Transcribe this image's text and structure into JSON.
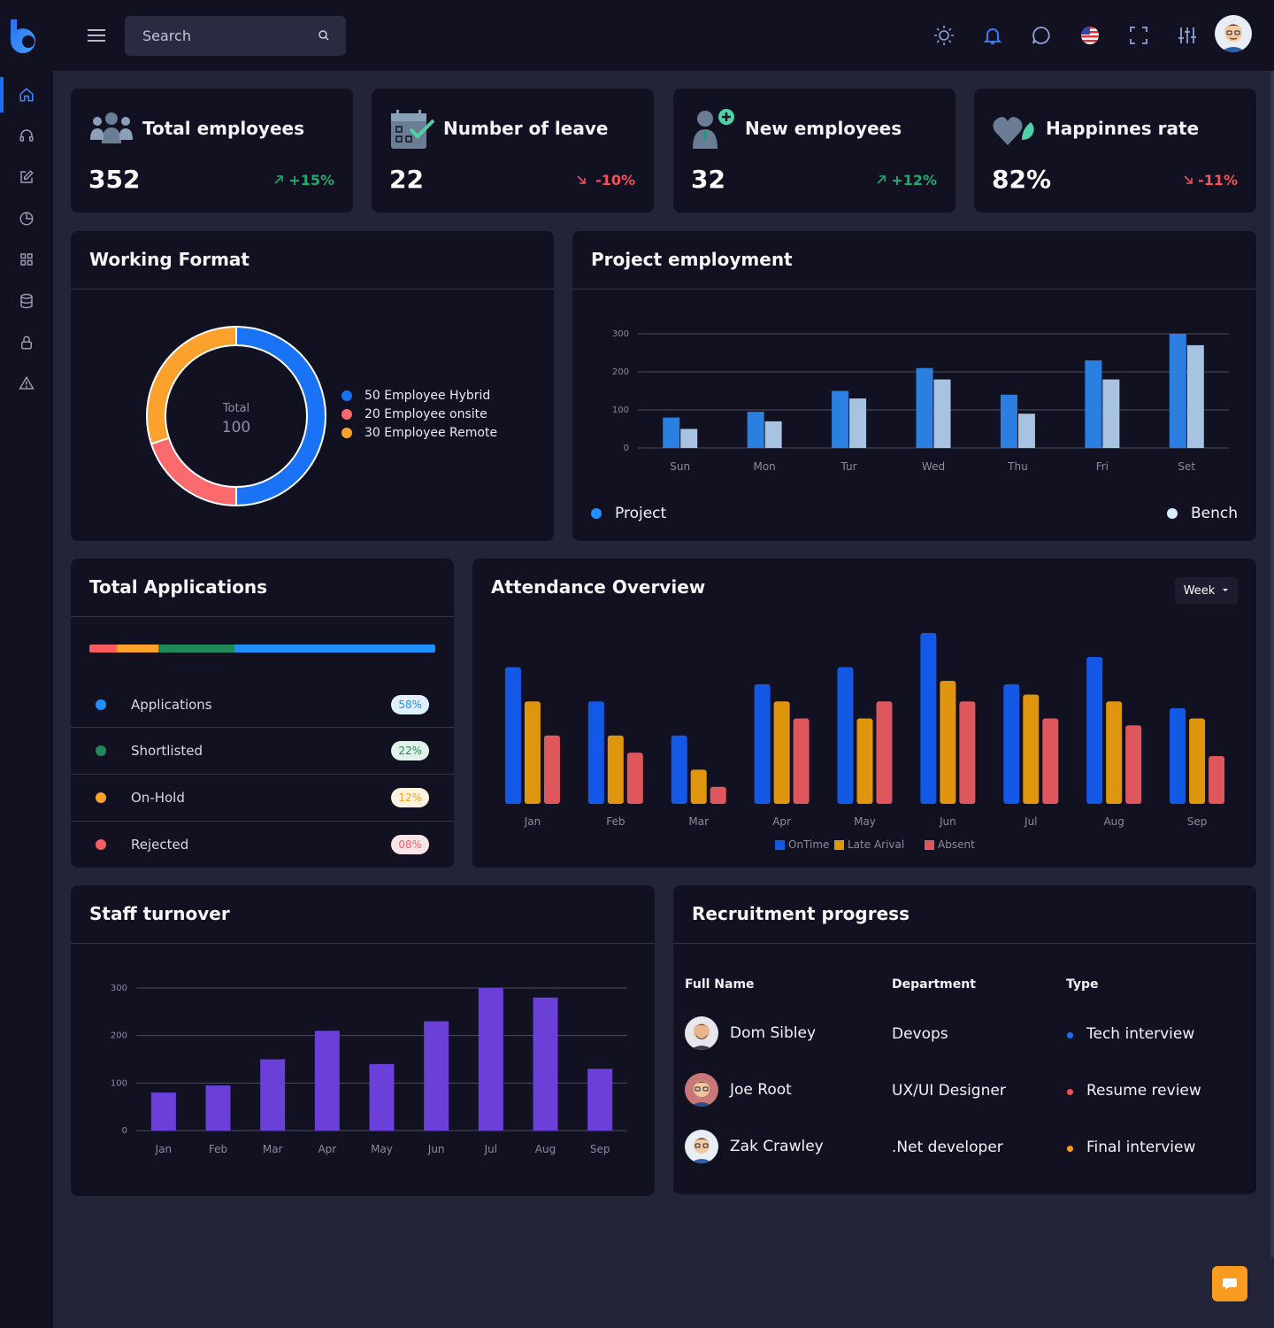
{
  "header": {
    "search_placeholder": "Search"
  },
  "sidebar": {
    "items": [
      "home-icon",
      "headset-icon",
      "edit-icon",
      "pie-chart-icon",
      "grid-icon",
      "database-icon",
      "lock-icon",
      "alert-icon"
    ]
  },
  "stats": [
    {
      "title": "Total employees",
      "value": "352",
      "change": "+15%",
      "trend": "up"
    },
    {
      "title": "Number of leave",
      "value": "22",
      "change": "-10%",
      "trend": "down"
    },
    {
      "title": "New employees",
      "value": "32",
      "change": "+12%",
      "trend": "up"
    },
    {
      "title": "Happinnes rate",
      "value": "82%",
      "change": "-11%",
      "trend": "down"
    }
  ],
  "working_format": {
    "title": "Working Format",
    "center_label": "Total",
    "center_value": "100",
    "legend": [
      {
        "label": "50 Employee Hybrid",
        "color": "#1a73f5"
      },
      {
        "label": "20 Employee onsite",
        "color": "#fd6a6e"
      },
      {
        "label": "30 Employee Remote",
        "color": "#fca12b"
      }
    ]
  },
  "project_employment": {
    "title": "Project employment",
    "legend_project": "Project",
    "legend_bench": "Bench"
  },
  "total_applications": {
    "title": "Total Applications",
    "rows": [
      {
        "label": "Applications",
        "badge": "58%",
        "color": "#1e90ff",
        "badge_bg": "#dff1ff",
        "badge_fg": "#1e90ff"
      },
      {
        "label": "Shortlisted",
        "badge": "22%",
        "color": "#1e8a58",
        "badge_bg": "#dff3e8",
        "badge_fg": "#1e8a58"
      },
      {
        "label": "On-Hold",
        "badge": "12%",
        "color": "#fca12b",
        "badge_bg": "#fff3df",
        "badge_fg": "#fca12b"
      },
      {
        "label": "Rejected",
        "badge": "08%",
        "color": "#fd5c63",
        "badge_bg": "#ffe5e7",
        "badge_fg": "#fd5c63"
      }
    ]
  },
  "attendance": {
    "title": "Attendance Overview",
    "period": "Week"
  },
  "staff_turnover": {
    "title": "Staff turnover"
  },
  "recruitment": {
    "title": "Recruitment progress",
    "headers": {
      "name": "Full Name",
      "department": "Department",
      "type": "Type"
    },
    "rows": [
      {
        "name": "Dom Sibley",
        "department": "Devops",
        "type": "Tech interview",
        "dot": "#1e6ef5"
      },
      {
        "name": "Joe Root",
        "department": "UX/UI Designer",
        "type": "Resume review",
        "dot": "#f0525a"
      },
      {
        "name": "Zak Crawley",
        "department": ".Net developer",
        "type": "Final interview",
        "dot": "#f99b1e"
      }
    ]
  },
  "chart_data": [
    {
      "type": "pie",
      "title": "Working Format",
      "categories": [
        "Employee Hybrid",
        "Employee onsite",
        "Employee Remote"
      ],
      "values": [
        50,
        20,
        30
      ],
      "colors": [
        "#1a73f5",
        "#fd6a6e",
        "#fca12b"
      ]
    },
    {
      "type": "bar",
      "title": "Project employment",
      "categories": [
        "Sun",
        "Mon",
        "Tur",
        "Wed",
        "Thu",
        "Fri",
        "Set"
      ],
      "series": [
        {
          "name": "Project",
          "values": [
            80,
            95,
            150,
            210,
            140,
            230,
            300
          ],
          "color": "#2b7fe0"
        },
        {
          "name": "Bench",
          "values": [
            50,
            70,
            130,
            180,
            90,
            180,
            270
          ],
          "color": "#a8c2e2"
        }
      ],
      "yticks": [
        0,
        100,
        200,
        300
      ],
      "ylim": [
        0,
        300
      ],
      "grid": true
    },
    {
      "type": "bar",
      "title": "Total Applications",
      "categories": [
        "Applications",
        "Shortlisted",
        "On-Hold",
        "Rejected"
      ],
      "values": [
        58,
        22,
        12,
        8
      ]
    },
    {
      "type": "bar",
      "title": "Attendance Overview",
      "categories": [
        "Jan",
        "Feb",
        "Mar",
        "Apr",
        "May",
        "Jun",
        "Jul",
        "Aug",
        "Sep"
      ],
      "series": [
        {
          "name": "OnTime",
          "values": [
            80,
            60,
            40,
            70,
            80,
            100,
            70,
            86,
            56
          ],
          "color": "#1458e6"
        },
        {
          "name": "Late Arival",
          "values": [
            60,
            40,
            20,
            60,
            50,
            72,
            64,
            60,
            50
          ],
          "color": "#e0950f"
        },
        {
          "name": "Absent",
          "values": [
            40,
            30,
            10,
            50,
            60,
            60,
            50,
            46,
            28
          ],
          "color": "#dd575d"
        }
      ],
      "ylim": [
        0,
        100
      ],
      "legend": "bottom"
    },
    {
      "type": "bar",
      "title": "Staff turnover",
      "categories": [
        "Jan",
        "Feb",
        "Mar",
        "Apr",
        "May",
        "Jun",
        "Jul",
        "Aug",
        "Sep"
      ],
      "values": [
        80,
        95,
        150,
        210,
        140,
        230,
        300,
        280,
        130
      ],
      "color": "#6a40d8",
      "yticks": [
        0,
        100,
        200,
        300
      ],
      "ylim": [
        0,
        300
      ],
      "grid": true
    }
  ]
}
